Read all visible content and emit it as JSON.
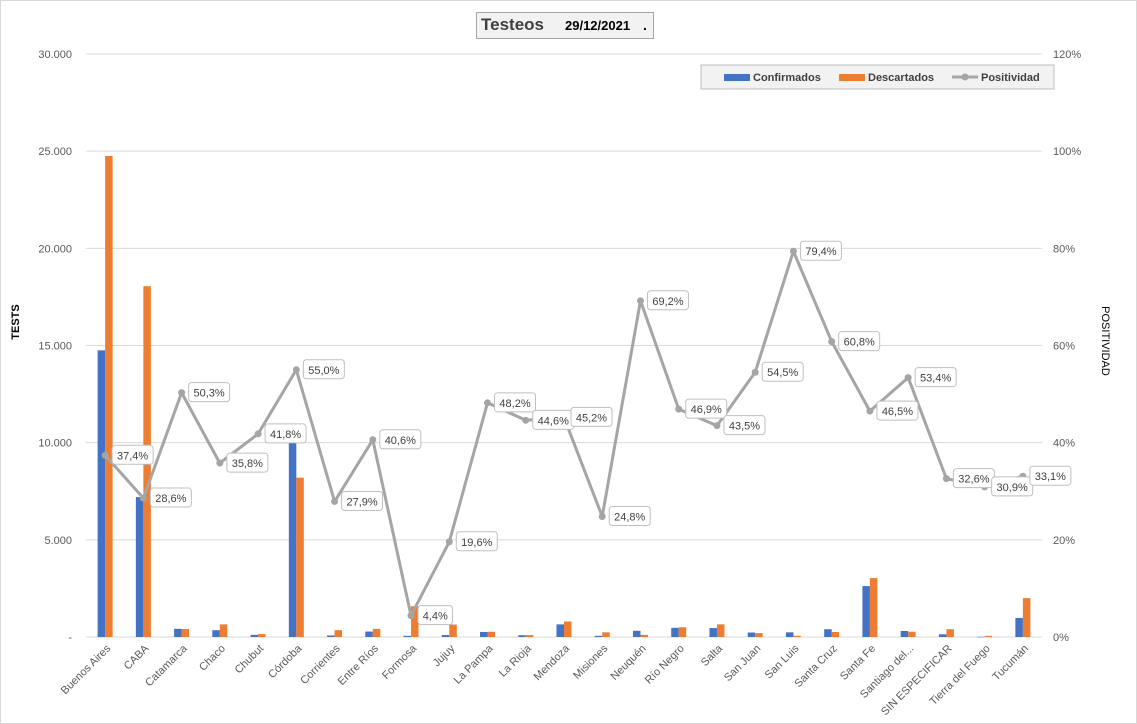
{
  "chart_data": {
    "type": "bar",
    "title": "Testeos",
    "date": "29/12/2021",
    "title_suffix": ".",
    "ylabel": "TESTS",
    "y2label": "POSITIVIDAD",
    "ylim": [
      0,
      30000
    ],
    "y2lim": [
      0,
      120
    ],
    "yticks": [
      "-",
      "5.000",
      "10.000",
      "15.000",
      "20.000",
      "25.000",
      "30.000"
    ],
    "y2ticks": [
      "0%",
      "20%",
      "40%",
      "60%",
      "80%",
      "100%",
      "120%"
    ],
    "legend_position": "top-right",
    "colors": {
      "confirmados": "#4472c4",
      "descartados": "#ed7d31",
      "positividad": "#a5a5a5"
    },
    "categories": [
      "Buenos Aires",
      "CABA",
      "Catamarca",
      "Chaco",
      "Chubut",
      "Córdoba",
      "Corrientes",
      "Entre Ríos",
      "Formosa",
      "Jujuy",
      "La Pampa",
      "La Rioja",
      "Mendoza",
      "Misiones",
      "Neuquén",
      "Río Negro",
      "Salta",
      "San Juan",
      "San Luis",
      "Santa Cruz",
      "Santa Fe",
      "Santiago del...",
      "SIN ESPECIFICAR",
      "Tierra del Fuego",
      "Tucumán"
    ],
    "series": [
      {
        "name": "Confirmados",
        "type": "bar",
        "values": [
          14750,
          7200,
          420,
          350,
          110,
          10050,
          80,
          280,
          60,
          100,
          260,
          90,
          650,
          60,
          320,
          470,
          460,
          230,
          240,
          400,
          2620,
          310,
          140,
          10,
          980
        ]
      },
      {
        "name": "Descartados",
        "type": "bar",
        "values": [
          24750,
          18050,
          410,
          650,
          150,
          8200,
          350,
          420,
          1580,
          640,
          270,
          100,
          800,
          240,
          110,
          500,
          650,
          200,
          60,
          260,
          3030,
          270,
          400,
          60,
          2000
        ]
      },
      {
        "name": "Positividad",
        "type": "line",
        "axis": "secondary",
        "values": [
          37.4,
          28.6,
          50.3,
          35.8,
          41.8,
          55.0,
          27.9,
          40.6,
          4.4,
          19.6,
          48.2,
          44.6,
          45.2,
          24.8,
          69.2,
          46.9,
          43.5,
          54.5,
          79.4,
          60.8,
          46.5,
          53.4,
          32.6,
          30.9,
          33.1
        ],
        "labels": [
          "37,4%",
          "28,6%",
          "50,3%",
          "35,8%",
          "41,8%",
          "55,0%",
          "27,9%",
          "40,6%",
          "4,4%",
          "19,6%",
          "48,2%",
          "44,6%",
          "45,2%",
          "24,8%",
          "69,2%",
          "46,9%",
          "43,5%",
          "54,5%",
          "79,4%",
          "60,8%",
          "46,5%",
          "53,4%",
          "32,6%",
          "30,9%",
          "33,1%"
        ]
      }
    ]
  }
}
